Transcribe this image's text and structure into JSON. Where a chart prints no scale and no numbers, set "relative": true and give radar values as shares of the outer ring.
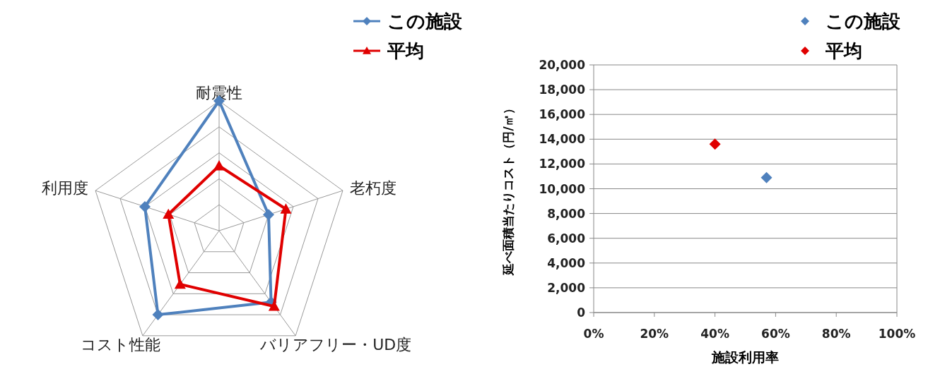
{
  "chart_data": [
    {
      "type": "radar",
      "relative": true,
      "categories": [
        "耐震性",
        "老朽度",
        "バリアフリー・UD度",
        "コスト性能",
        "利用度"
      ],
      "legend": "top right",
      "series": [
        {
          "name": "この施設",
          "color": "#4f81bd",
          "marker": "diamond",
          "values": [
            1.0,
            0.4,
            0.68,
            0.8,
            0.6
          ]
        },
        {
          "name": "平均",
          "color": "#e00000",
          "marker": "triangle",
          "values": [
            0.5,
            0.54,
            0.72,
            0.51,
            0.41
          ]
        }
      ]
    },
    {
      "type": "scatter",
      "xlabel": "施設利用率",
      "ylabel": "延べ面積当たりコスト（円/㎡）",
      "legend": "top right",
      "grid": "y",
      "marker": "diamond",
      "xlim": [
        0,
        100
      ],
      "xticks": [
        {
          "value": 0,
          "label": "0%"
        },
        {
          "value": 20,
          "label": "20%"
        },
        {
          "value": 40,
          "label": "40%"
        },
        {
          "value": 60,
          "label": "60%"
        },
        {
          "value": 80,
          "label": "80%"
        },
        {
          "value": 100,
          "label": "100%"
        }
      ],
      "ylim": [
        0,
        20000
      ],
      "yticks": [
        0,
        {
          "value": 2000,
          "label": "2,000"
        },
        {
          "value": 4000,
          "label": "4,000"
        },
        {
          "value": 6000,
          "label": "6,000"
        },
        {
          "value": 8000,
          "label": "8,000"
        },
        {
          "value": 10000,
          "label": "10,000"
        },
        {
          "value": 12000,
          "label": "12,000"
        },
        {
          "value": 14000,
          "label": "14,000"
        },
        {
          "value": 16000,
          "label": "16,000"
        },
        {
          "value": 18000,
          "label": "18,000"
        },
        {
          "value": 20000,
          "label": "20,000"
        }
      ],
      "series": [
        {
          "name": "この施設",
          "color": "#4f81bd",
          "x": [
            57
          ],
          "values": [
            10900
          ]
        },
        {
          "name": "平均",
          "color": "#e00000",
          "x": [
            40
          ],
          "values": [
            13600
          ]
        }
      ]
    }
  ]
}
